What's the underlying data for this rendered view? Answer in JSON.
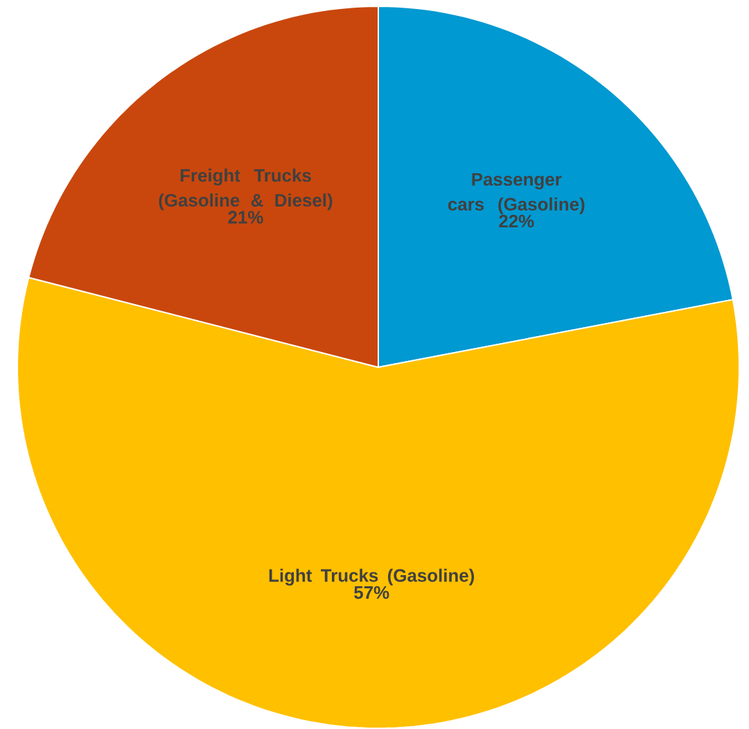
{
  "chart_data": {
    "type": "pie",
    "categories": [
      "Passenger cars (Gasoline)",
      "Light Trucks (Gasoline)",
      "Freight Trucks (Gasoline & Diesel)"
    ],
    "values": [
      22,
      57,
      21
    ],
    "colors": [
      "#0099d1",
      "#ffc000",
      "#c9470d"
    ],
    "value_labels": [
      "22%",
      "57%",
      "21%"
    ]
  }
}
